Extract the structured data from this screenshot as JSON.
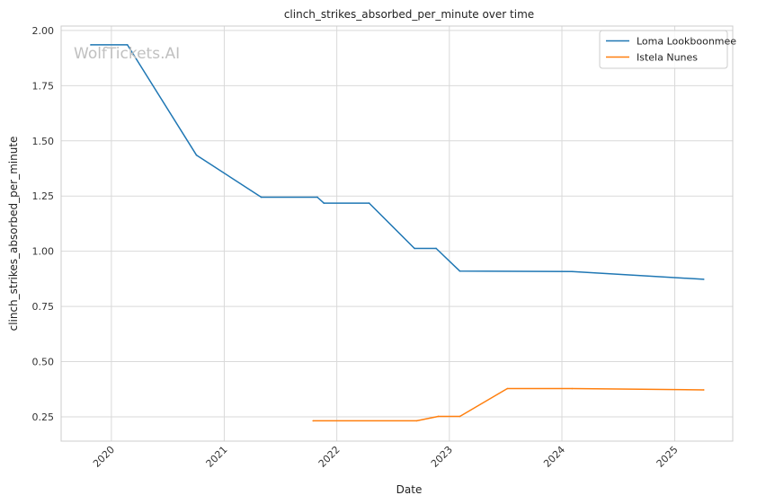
{
  "chart_data": {
    "type": "line",
    "title": "clinch_strikes_absorbed_per_minute over time",
    "xlabel": "Date",
    "ylabel": "clinch_strikes_absorbed_per_minute",
    "watermark": "WolfTickets.AI",
    "x_tick_labels": [
      "2020",
      "2021",
      "2022",
      "2023",
      "2024",
      "2025"
    ],
    "y_tick_labels": [
      "0.25",
      "0.50",
      "0.75",
      "1.00",
      "1.25",
      "1.50",
      "1.75",
      "2.00"
    ],
    "xlim": [
      "2019-07-22",
      "2025-07-08"
    ],
    "ylim": [
      0.14,
      2.02
    ],
    "grid": true,
    "legend_position": "top-right",
    "series": [
      {
        "name": "Loma Lookboonmee",
        "color": "#1f77b4",
        "points": [
          [
            "2019-10-26",
            1.935
          ],
          [
            "2020-02-22",
            1.935
          ],
          [
            "2020-10-03",
            1.435
          ],
          [
            "2021-05-01",
            1.245
          ],
          [
            "2021-10-30",
            1.245
          ],
          [
            "2021-11-20",
            1.218
          ],
          [
            "2022-04-16",
            1.218
          ],
          [
            "2022-09-10",
            1.013
          ],
          [
            "2022-11-19",
            1.013
          ],
          [
            "2023-02-04",
            0.91
          ],
          [
            "2024-02-03",
            0.908
          ],
          [
            "2025-04-05",
            0.873
          ]
        ]
      },
      {
        "name": "Istela Nunes",
        "color": "#ff7f0e",
        "points": [
          [
            "2021-10-16",
            0.232
          ],
          [
            "2022-09-17",
            0.232
          ],
          [
            "2022-11-26",
            0.252
          ],
          [
            "2023-02-04",
            0.252
          ],
          [
            "2023-07-08",
            0.378
          ],
          [
            "2024-02-03",
            0.378
          ],
          [
            "2025-04-05",
            0.372
          ]
        ]
      }
    ]
  }
}
